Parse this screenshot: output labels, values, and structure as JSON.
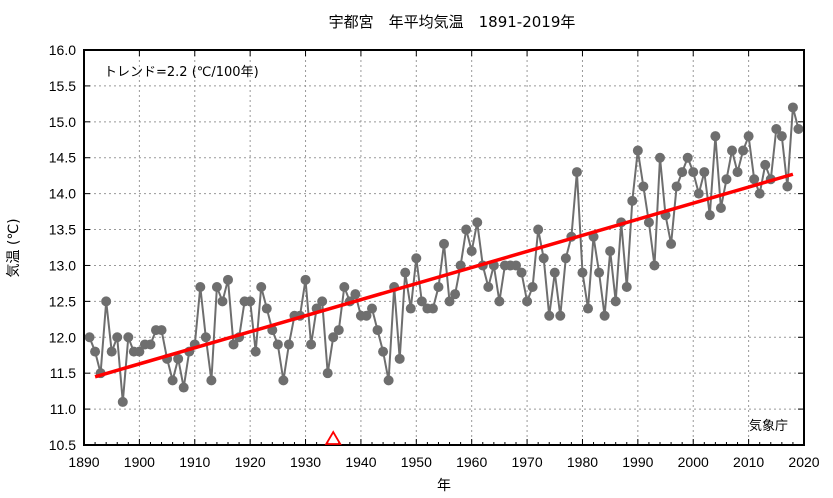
{
  "chart_data": {
    "type": "line",
    "title": "宇都宮　年平均気温　1891-2019年",
    "xlabel": "年",
    "ylabel": "気温 (℃)",
    "xlim": [
      1890,
      2020
    ],
    "ylim": [
      10.5,
      16.0
    ],
    "grid": true,
    "x_ticks": [
      "1890",
      "1900",
      "1910",
      "1920",
      "1930",
      "1940",
      "1950",
      "1960",
      "1970",
      "1980",
      "1990",
      "2000",
      "2010",
      "2020"
    ],
    "y_ticks": [
      "10.5",
      "11.0",
      "11.5",
      "12.0",
      "12.5",
      "13.0",
      "13.5",
      "14.0",
      "14.5",
      "15.0",
      "15.5",
      "16.0"
    ],
    "annotation_trend": "トレンド=2.2 (℃/100年)",
    "source": "気象庁",
    "marker_year": 1935,
    "series": [
      {
        "name": "年平均気温",
        "color": "#6e6e6e",
        "x": [
          1891,
          1892,
          1893,
          1894,
          1895,
          1896,
          1897,
          1898,
          1899,
          1900,
          1901,
          1902,
          1903,
          1904,
          1905,
          1906,
          1907,
          1908,
          1909,
          1910,
          1911,
          1912,
          1913,
          1914,
          1915,
          1916,
          1917,
          1918,
          1919,
          1920,
          1921,
          1922,
          1923,
          1924,
          1925,
          1926,
          1927,
          1928,
          1929,
          1930,
          1931,
          1932,
          1933,
          1934,
          1935,
          1936,
          1937,
          1938,
          1939,
          1940,
          1941,
          1942,
          1943,
          1944,
          1945,
          1946,
          1947,
          1948,
          1949,
          1950,
          1951,
          1952,
          1953,
          1954,
          1955,
          1956,
          1957,
          1958,
          1959,
          1960,
          1961,
          1962,
          1963,
          1964,
          1965,
          1966,
          1967,
          1968,
          1969,
          1970,
          1971,
          1972,
          1973,
          1974,
          1975,
          1976,
          1977,
          1978,
          1979,
          1980,
          1981,
          1982,
          1983,
          1984,
          1985,
          1986,
          1987,
          1988,
          1989,
          1990,
          1991,
          1992,
          1993,
          1994,
          1995,
          1996,
          1997,
          1998,
          1999,
          2000,
          2001,
          2002,
          2003,
          2004,
          2005,
          2006,
          2007,
          2008,
          2009,
          2010,
          2011,
          2012,
          2013,
          2014,
          2015,
          2016,
          2017,
          2018,
          2019
        ],
        "values": [
          12.0,
          11.8,
          11.5,
          12.5,
          11.8,
          12.0,
          11.1,
          12.0,
          11.8,
          11.8,
          11.9,
          11.9,
          12.1,
          12.1,
          11.7,
          11.4,
          11.7,
          11.3,
          11.8,
          11.9,
          12.7,
          12.0,
          11.4,
          12.7,
          12.5,
          12.8,
          11.9,
          12.0,
          12.5,
          12.5,
          11.8,
          12.7,
          12.4,
          12.1,
          11.9,
          11.4,
          11.9,
          12.3,
          12.3,
          12.8,
          11.9,
          12.4,
          12.5,
          11.5,
          12.0,
          12.1,
          12.7,
          12.5,
          12.6,
          12.3,
          12.3,
          12.4,
          12.1,
          11.8,
          11.4,
          12.7,
          11.7,
          12.9,
          12.4,
          13.1,
          12.5,
          12.4,
          12.4,
          12.7,
          13.3,
          12.5,
          12.6,
          13.0,
          13.5,
          13.2,
          13.6,
          13.0,
          12.7,
          13.0,
          12.5,
          13.0,
          13.0,
          13.0,
          12.9,
          12.5,
          12.7,
          13.5,
          13.1,
          12.3,
          12.9,
          12.3,
          13.1,
          13.4,
          14.3,
          12.9,
          12.4,
          13.4,
          12.9,
          12.3,
          13.2,
          12.5,
          13.6,
          12.7,
          13.9,
          14.6,
          14.1,
          13.6,
          13.0,
          14.5,
          13.7,
          13.3,
          14.1,
          14.3,
          14.5,
          14.3,
          14.0,
          14.3,
          13.7,
          14.8,
          13.8,
          14.2,
          14.6,
          14.3,
          14.6,
          14.8,
          14.2,
          14.0,
          14.4,
          14.2,
          14.9,
          14.8,
          14.1,
          15.2,
          14.9
        ]
      },
      {
        "name": "トレンド",
        "color": "#ff0000",
        "x": [
          1892,
          2018
        ],
        "values": [
          11.45,
          14.27
        ]
      }
    ]
  },
  "colors": {
    "marker": "#ff0000",
    "grid": "#999999",
    "axis": "#000000"
  }
}
